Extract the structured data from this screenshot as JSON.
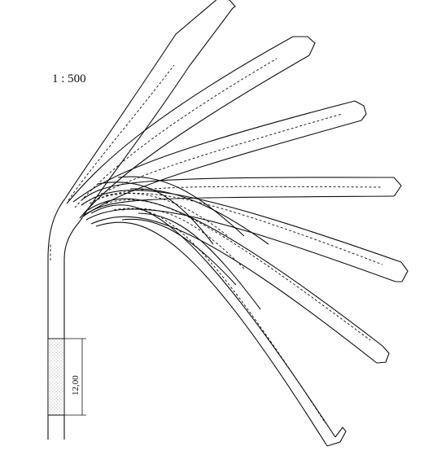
{
  "diagram": {
    "scale_label": "1 : 500",
    "dimension_label": "12,00",
    "line_color": "#111111",
    "stipple_color": "#9a9a9a",
    "background": "#ffffff"
  }
}
